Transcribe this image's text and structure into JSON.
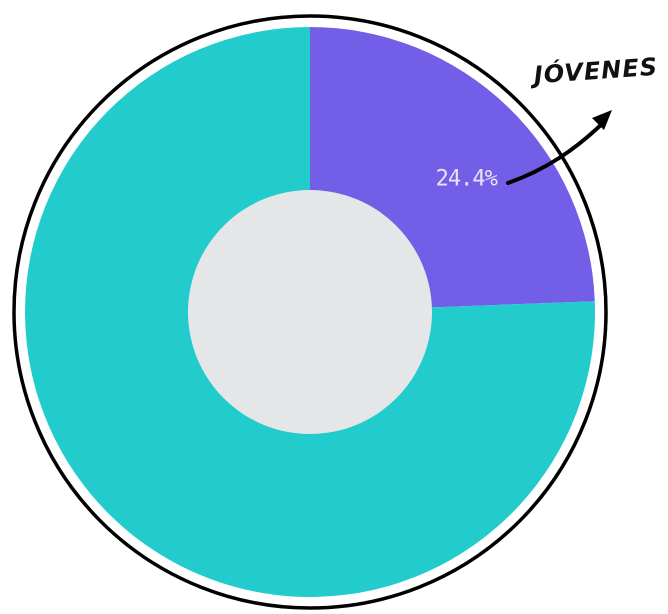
{
  "chart_data": {
    "type": "donut",
    "categories": [
      "JÓVENES",
      null
    ],
    "values": [
      24.4,
      75.6
    ],
    "value_labels": [
      "24.4%",
      null
    ],
    "colors": [
      "#735ee8",
      "#22cccc"
    ]
  }
}
